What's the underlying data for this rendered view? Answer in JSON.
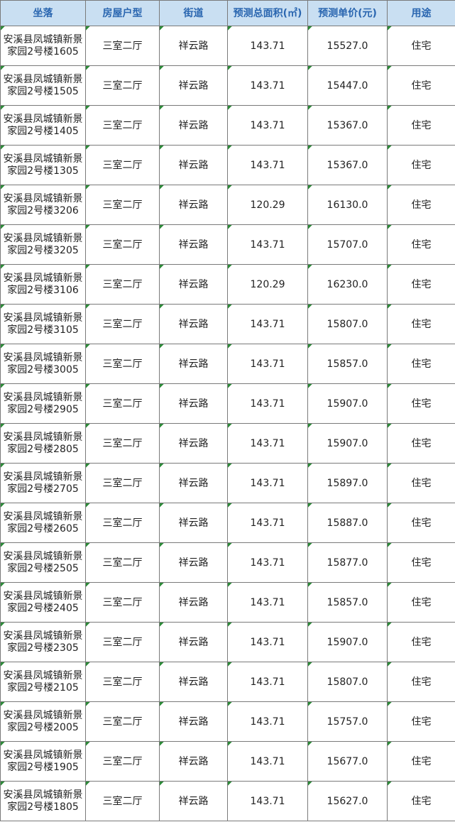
{
  "table": {
    "headers": [
      "坐落",
      "房屋户型",
      "街道",
      "预测总面积(㎡)",
      "预测单价(元)",
      "用途"
    ],
    "rows": [
      [
        "安溪县凤城镇新景家园2号楼1605",
        "三室二厅",
        "祥云路",
        "143.71",
        "15527.0",
        "住宅"
      ],
      [
        "安溪县凤城镇新景家园2号楼1505",
        "三室二厅",
        "祥云路",
        "143.71",
        "15447.0",
        "住宅"
      ],
      [
        "安溪县凤城镇新景家园2号楼1405",
        "三室二厅",
        "祥云路",
        "143.71",
        "15367.0",
        "住宅"
      ],
      [
        "安溪县凤城镇新景家园2号楼1305",
        "三室二厅",
        "祥云路",
        "143.71",
        "15367.0",
        "住宅"
      ],
      [
        "安溪县凤城镇新景家园2号楼3206",
        "三室二厅",
        "祥云路",
        "120.29",
        "16130.0",
        "住宅"
      ],
      [
        "安溪县凤城镇新景家园2号楼3205",
        "三室二厅",
        "祥云路",
        "143.71",
        "15707.0",
        "住宅"
      ],
      [
        "安溪县凤城镇新景家园2号楼3106",
        "三室二厅",
        "祥云路",
        "120.29",
        "16230.0",
        "住宅"
      ],
      [
        "安溪县凤城镇新景家园2号楼3105",
        "三室二厅",
        "祥云路",
        "143.71",
        "15807.0",
        "住宅"
      ],
      [
        "安溪县凤城镇新景家园2号楼3005",
        "三室二厅",
        "祥云路",
        "143.71",
        "15857.0",
        "住宅"
      ],
      [
        "安溪县凤城镇新景家园2号楼2905",
        "三室二厅",
        "祥云路",
        "143.71",
        "15907.0",
        "住宅"
      ],
      [
        "安溪县凤城镇新景家园2号楼2805",
        "三室二厅",
        "祥云路",
        "143.71",
        "15907.0",
        "住宅"
      ],
      [
        "安溪县凤城镇新景家园2号楼2705",
        "三室二厅",
        "祥云路",
        "143.71",
        "15897.0",
        "住宅"
      ],
      [
        "安溪县凤城镇新景家园2号楼2605",
        "三室二厅",
        "祥云路",
        "143.71",
        "15887.0",
        "住宅"
      ],
      [
        "安溪县凤城镇新景家园2号楼2505",
        "三室二厅",
        "祥云路",
        "143.71",
        "15877.0",
        "住宅"
      ],
      [
        "安溪县凤城镇新景家园2号楼2405",
        "三室二厅",
        "祥云路",
        "143.71",
        "15857.0",
        "住宅"
      ],
      [
        "安溪县凤城镇新景家园2号楼2305",
        "三室二厅",
        "祥云路",
        "143.71",
        "15907.0",
        "住宅"
      ],
      [
        "安溪县凤城镇新景家园2号楼2105",
        "三室二厅",
        "祥云路",
        "143.71",
        "15807.0",
        "住宅"
      ],
      [
        "安溪县凤城镇新景家园2号楼2005",
        "三室二厅",
        "祥云路",
        "143.71",
        "15757.0",
        "住宅"
      ],
      [
        "安溪县凤城镇新景家园2号楼1905",
        "三室二厅",
        "祥云路",
        "143.71",
        "15677.0",
        "住宅"
      ],
      [
        "安溪县凤城镇新景家园2号楼1805",
        "三室二厅",
        "祥云路",
        "143.71",
        "15627.0",
        "住宅"
      ]
    ]
  }
}
